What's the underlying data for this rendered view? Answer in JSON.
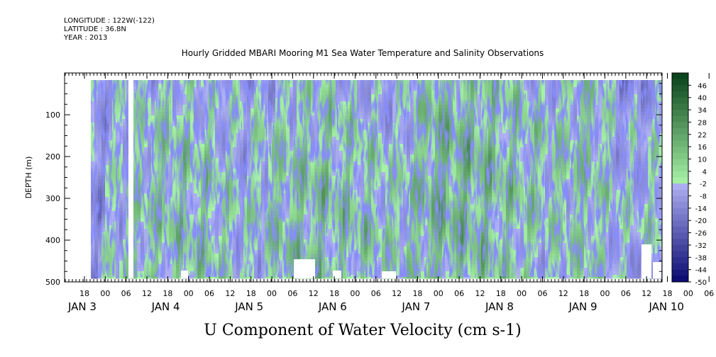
{
  "header": {
    "longitude": "LONGITUDE : 122W(-122)",
    "latitude": "LATITUDE : 36.8N",
    "year": "YEAR : 2013"
  },
  "chart_data": {
    "type": "heatmap",
    "title": "Hourly Gridded MBARI Mooring M1 Sea Water Temperature and Salinity Observations",
    "xlabel": "U Component of Water Velocity (cm s-1)",
    "ylabel": "DEPTH (m)",
    "y_ticks": [
      100,
      200,
      300,
      400,
      500
    ],
    "ylim": [
      500,
      0
    ],
    "y_inverted": true,
    "x_hour_labels": [
      "18",
      "00",
      "06",
      "12",
      "18",
      "00",
      "06",
      "12",
      "18",
      "00",
      "06",
      "12",
      "18",
      "00",
      "06",
      "12",
      "18",
      "00",
      "06",
      "12",
      "18",
      "00",
      "06",
      "12",
      "18",
      "00",
      "06",
      "12",
      "18",
      "00",
      "06",
      "12"
    ],
    "x_day_labels": [
      "JAN  3",
      "JAN  4",
      "JAN  5",
      "JAN  6",
      "JAN  7",
      "JAN  8",
      "JAN  9",
      "JAN 10"
    ],
    "colorbar": {
      "labels": [
        "46",
        "40",
        "34",
        "28",
        "22",
        "16",
        "10",
        "4",
        "-2",
        "-8",
        "-14",
        "-20",
        "-26",
        "-32",
        "-38",
        "-44",
        "-50"
      ],
      "range": [
        -50,
        52
      ],
      "step": 3
    },
    "time_columns": [
      "Jan3 00",
      "Jan3 12",
      "Jan4 00",
      "Jan4 12",
      "Jan5 00",
      "Jan5 12",
      "Jan6 00",
      "Jan6 12",
      "Jan7 00",
      "Jan7 12",
      "Jan8 00",
      "Jan8 12",
      "Jan9 00",
      "Jan9 12",
      "Jan10 00",
      "Jan10 12"
    ],
    "depth_rows": [
      50,
      150,
      250,
      350,
      450
    ],
    "values_approx": [
      [
        -8,
        -6,
        4,
        -4,
        -5,
        -3,
        2,
        -2,
        -6,
        10,
        8,
        4,
        -2,
        6,
        -14,
        -4
      ],
      [
        -10,
        2,
        6,
        2,
        -4,
        4,
        6,
        4,
        -4,
        14,
        12,
        8,
        2,
        10,
        -6,
        -2
      ],
      [
        -12,
        4,
        8,
        6,
        -2,
        8,
        10,
        6,
        2,
        16,
        14,
        8,
        4,
        8,
        -4,
        0
      ],
      [
        -10,
        6,
        8,
        8,
        0,
        10,
        10,
        8,
        4,
        14,
        12,
        6,
        2,
        6,
        -2,
        2
      ],
      [
        -8,
        4,
        6,
        6,
        -4,
        8,
        8,
        6,
        2,
        10,
        10,
        4,
        0,
        4,
        -6,
        -2
      ]
    ],
    "data_coverage": "Jan 3 ~00 to Jan 10 ~15"
  }
}
